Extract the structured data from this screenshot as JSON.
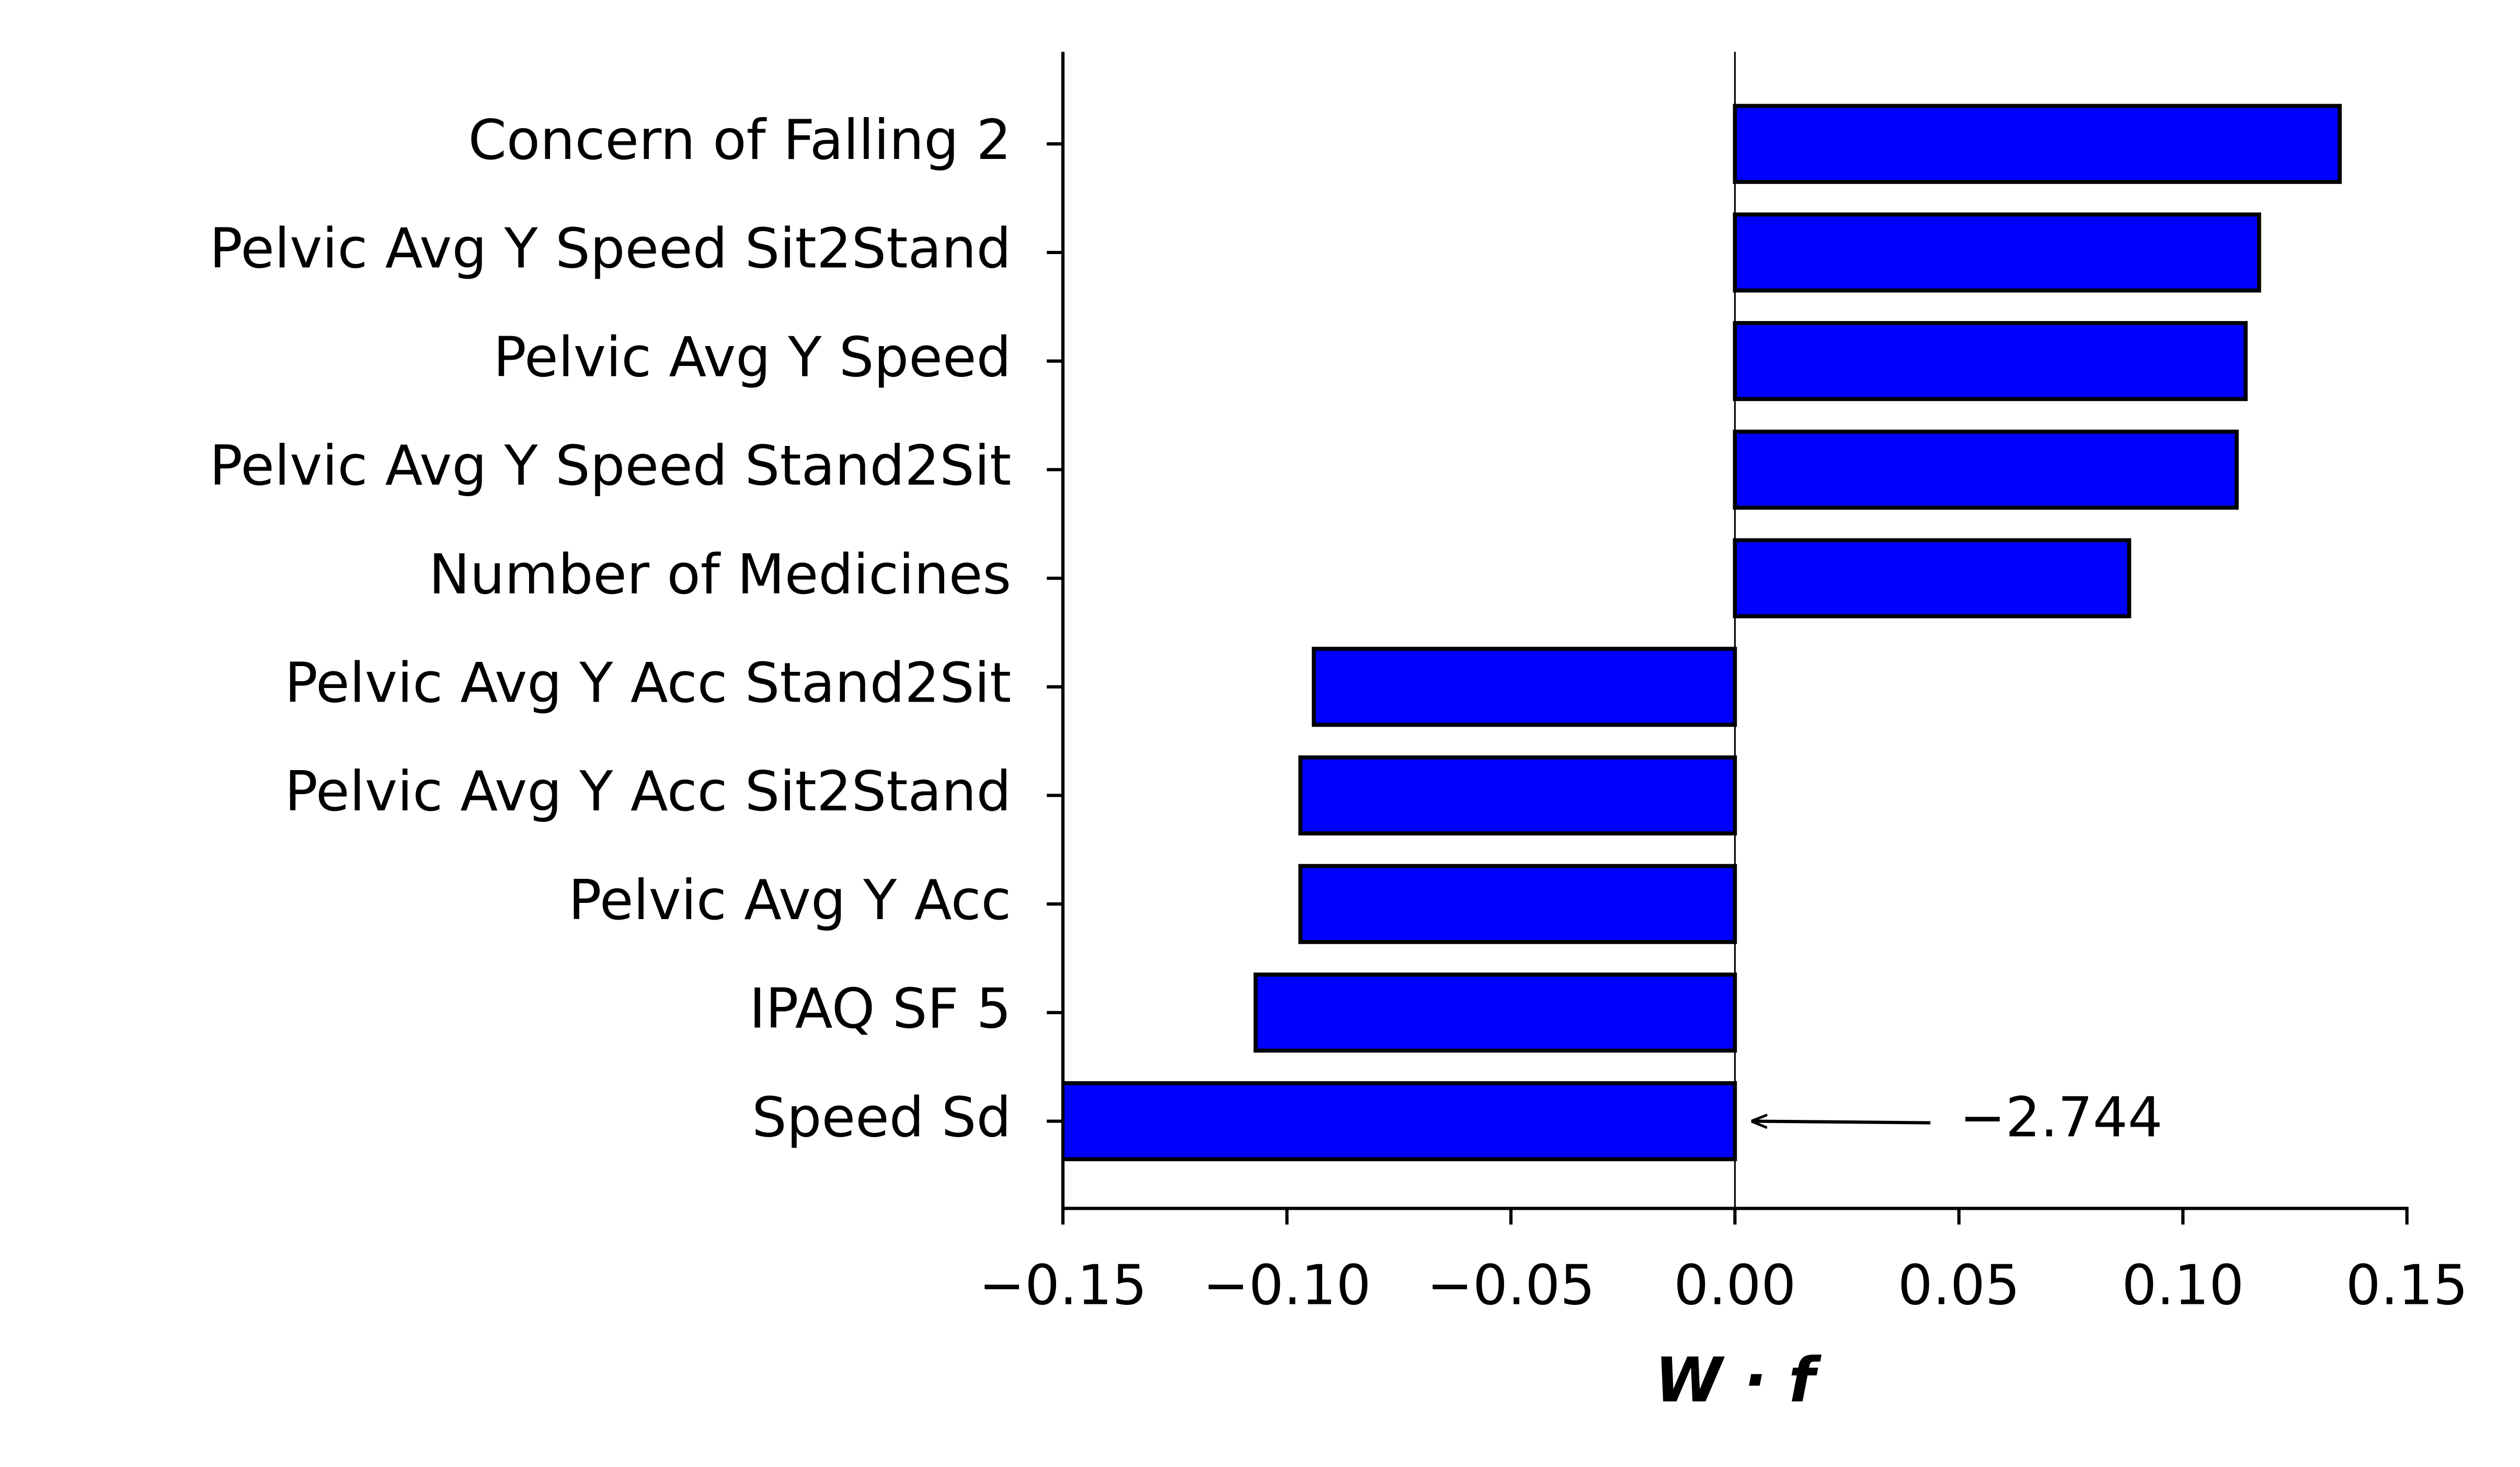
{
  "chart_data": {
    "type": "barh",
    "categories": [
      "Concern of Falling 2",
      "Pelvic Avg Y Speed Sit2Stand",
      "Pelvic Avg Y Speed",
      "Pelvic Avg Y Speed Stand2Sit",
      "Number of Medicines",
      "Pelvic Avg Y Acc Stand2Sit",
      "Pelvic Avg Y Acc Sit2Stand",
      "Pelvic Avg Y Acc",
      "IPAQ SF 5",
      "Speed Sd"
    ],
    "values": [
      0.135,
      0.117,
      0.114,
      0.112,
      0.088,
      -0.094,
      -0.097,
      -0.097,
      -0.107,
      -2.744
    ],
    "value_labels": [
      null,
      null,
      null,
      null,
      null,
      null,
      null,
      null,
      null,
      "−2.744"
    ],
    "color": "#0000ff",
    "xlabel": "W · f",
    "xlim": [
      -0.15,
      0.15
    ],
    "xticks": [
      {
        "value": -0.15,
        "label": "−0.15"
      },
      {
        "value": -0.1,
        "label": "−0.10"
      },
      {
        "value": -0.05,
        "label": "−0.05"
      },
      {
        "value": 0,
        "label": "0.00"
      },
      {
        "value": 0.05,
        "label": "0.05"
      },
      {
        "value": 0.1,
        "label": "0.10"
      },
      {
        "value": 0.15,
        "label": "0.15"
      }
    ]
  }
}
